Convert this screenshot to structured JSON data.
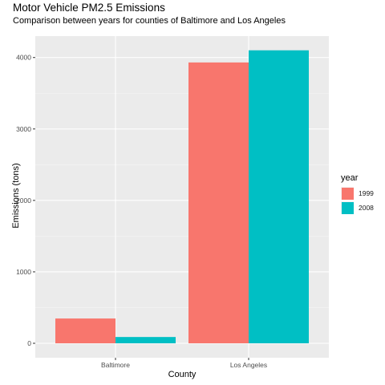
{
  "chart_data": {
    "type": "bar",
    "title": "Motor Vehicle PM2.5 Emissions",
    "subtitle": "Comparison between years for counties of Baltimore and Los Angeles",
    "xlabel": "County",
    "ylabel": "Emissions (tons)",
    "categories": [
      "Baltimore",
      "Los Angeles"
    ],
    "series": [
      {
        "name": "1999",
        "values": [
          347,
          3931
        ],
        "color": "#f8766d"
      },
      {
        "name": "2008",
        "values": [
          88,
          4101
        ],
        "color": "#00bfc4"
      }
    ],
    "ylim": [
      0,
      4300
    ],
    "yticks": [
      0,
      1000,
      2000,
      3000,
      4000
    ],
    "legend": {
      "title": "year",
      "position": "right"
    },
    "grid": true,
    "panel_background": "#ebebeb"
  }
}
